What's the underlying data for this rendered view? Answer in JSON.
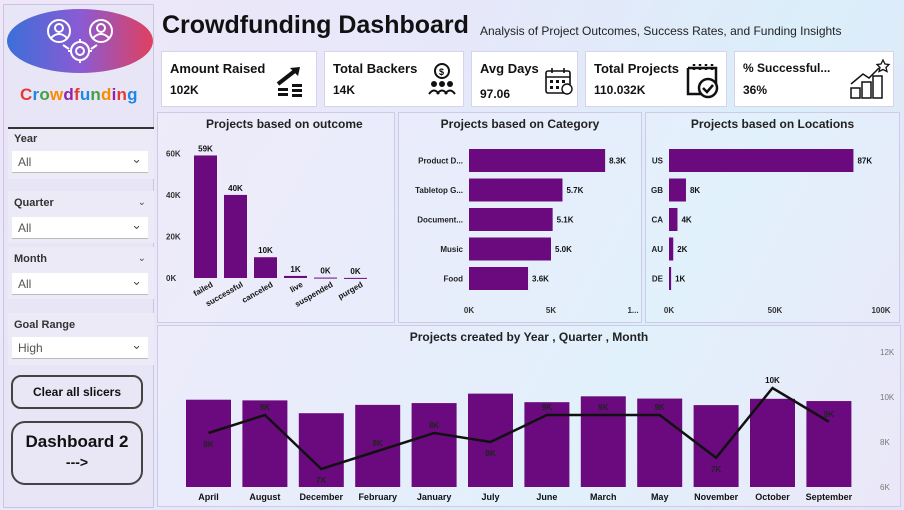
{
  "sidebar": {
    "logo_text": "Crowdfunding",
    "slicers": [
      {
        "label": "Year",
        "value": "All"
      },
      {
        "label": "Quarter",
        "value": "All"
      },
      {
        "label": "Month",
        "value": "All"
      },
      {
        "label": "Goal Range",
        "value": "High"
      }
    ],
    "clear_button": "Clear all slicers",
    "dash2_button_line1": "Dashboard 2",
    "dash2_button_line2": "--->"
  },
  "header": {
    "title": "Crowdfunding Dashboard",
    "subtitle": "Analysis of Project Outcomes, Success Rates, and Funding Insights"
  },
  "kpis": [
    {
      "label": "Amount Raised",
      "value": "102K",
      "icon": "money-growth-icon"
    },
    {
      "label": "Total Backers",
      "value": "14K",
      "icon": "group-money-icon"
    },
    {
      "label": "Avg Days",
      "value": "97.06",
      "icon": "calendar-icon"
    },
    {
      "label": "Total Projects",
      "value": "110.032K",
      "icon": "calendar-check-icon"
    },
    {
      "label": "% Successful...",
      "value": "36%",
      "icon": "growth-star-icon"
    }
  ],
  "colors": {
    "bar": "#6a0a7e",
    "line": "#111111",
    "accent": "#5b2c9a"
  },
  "chart_data": [
    {
      "type": "bar",
      "title": "Projects based on outcome",
      "categories": [
        "failed",
        "successful",
        "canceled",
        "live",
        "suspended",
        "purged"
      ],
      "values": [
        59000,
        40000,
        10000,
        1000,
        200,
        50
      ],
      "data_labels": [
        "59K",
        "40K",
        "10K",
        "1K",
        "0K",
        "0K"
      ],
      "y_ticks": [
        "0K",
        "20K",
        "40K",
        "60K"
      ],
      "ylim": [
        0,
        65000
      ]
    },
    {
      "type": "bar",
      "orientation": "horizontal",
      "title": "Projects based on Category",
      "categories": [
        "Product D...",
        "Tabletop G...",
        "Document...",
        "Music",
        "Food"
      ],
      "values": [
        8300,
        5700,
        5100,
        5000,
        3600
      ],
      "data_labels": [
        "8.3K",
        "5.7K",
        "5.1K",
        "5.0K",
        "3.6K"
      ],
      "x_ticks": [
        "0K",
        "5K",
        "1..."
      ],
      "xlim": [
        0,
        10000
      ]
    },
    {
      "type": "bar",
      "orientation": "horizontal",
      "title": "Projects based on Locations",
      "categories": [
        "US",
        "GB",
        "CA",
        "AU",
        "DE"
      ],
      "values": [
        87000,
        8000,
        4000,
        2000,
        1000
      ],
      "data_labels": [
        "87K",
        "8K",
        "4K",
        "2K",
        "1K"
      ],
      "x_ticks": [
        "0K",
        "50K",
        "100K"
      ],
      "xlim": [
        0,
        100000
      ]
    },
    {
      "type": "bar",
      "title": "Projects created by Year , Quarter , Month",
      "categories": [
        "April",
        "August",
        "December",
        "February",
        "January",
        "July",
        "June",
        "March",
        "May",
        "November",
        "October",
        "September"
      ],
      "values": [
        9880,
        9850,
        9280,
        9650,
        9730,
        10150,
        9770,
        10030,
        9930,
        9640,
        9920,
        9820
      ],
      "ylim": [
        6000,
        12000
      ],
      "y_ticks": [
        "12K",
        "10K",
        "8K",
        "6K"
      ],
      "line_values": [
        8400,
        9200,
        6800,
        7600,
        8400,
        8000,
        9200,
        9200,
        9200,
        7300,
        10400,
        8900
      ],
      "line_labels": [
        "8K",
        "9K",
        "7K",
        "8K",
        "8K",
        "8K",
        "9K",
        "9K",
        "9K",
        "7K",
        "10K",
        "9K"
      ]
    }
  ]
}
